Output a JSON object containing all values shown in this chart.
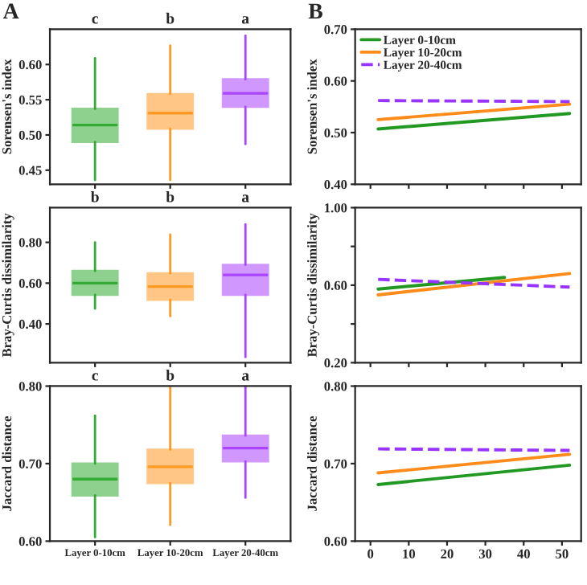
{
  "chart_data": [
    {
      "type": "box",
      "title": "A",
      "ylabel": "Sorensen's index",
      "categories": [
        null,
        null,
        null
      ],
      "colors": [
        "#33aa33",
        "#ff9922",
        "#aa44ff"
      ],
      "boxes": [
        {
          "low": 0.436,
          "q1": 0.49,
          "median": 0.514,
          "q3": 0.537,
          "high": 0.609
        },
        {
          "low": 0.436,
          "q1": 0.509,
          "median": 0.531,
          "q3": 0.558,
          "high": 0.627
        },
        {
          "low": 0.487,
          "q1": 0.54,
          "median": 0.559,
          "q3": 0.579,
          "high": 0.641
        }
      ],
      "ylim": [
        0.43,
        0.65
      ],
      "yticks": [
        {
          "value": 0.45,
          "label": "0.45"
        },
        {
          "value": 0.5,
          "label": "0.50"
        },
        {
          "value": 0.55,
          "label": "0.55"
        },
        {
          "value": 0.6,
          "label": "0.60"
        }
      ],
      "annotations": [
        "c",
        "b",
        "a"
      ],
      "tick_labels": "y"
    },
    {
      "type": "line",
      "title": "B",
      "ylabel": "Sorensen's index",
      "legend": "top left",
      "series": [
        {
          "name": "Layer 0-10cm",
          "color": "#229922",
          "x": [
            2,
            52
          ],
          "values": [
            0.507,
            0.537
          ],
          "line_style": "solid"
        },
        {
          "name": "Layer 10-20cm",
          "color": "#ff8c1a",
          "x": [
            2,
            52
          ],
          "values": [
            0.525,
            0.555
          ],
          "line_style": "solid"
        },
        {
          "name": "Layer 20-40cm",
          "color": "#9933ff",
          "x": [
            2,
            52
          ],
          "values": [
            0.562,
            0.56
          ],
          "line_style": "dashed"
        }
      ],
      "xlim": [
        -4,
        55
      ],
      "xticks": [
        0,
        10,
        20,
        30,
        40,
        50
      ],
      "ylim": [
        0.4,
        0.7
      ],
      "yticks": [
        {
          "value": 0.4,
          "label": "0.40"
        },
        {
          "value": 0.5,
          "label": "0.50"
        },
        {
          "value": 0.6,
          "label": "0.60"
        },
        {
          "value": 0.7,
          "label": "0.70"
        }
      ],
      "tick_labels": "y"
    },
    {
      "type": "box",
      "ylabel": "Bray-Curtis dissimilarity",
      "categories": [
        null,
        null,
        null
      ],
      "colors": [
        "#33aa33",
        "#ff9922",
        "#aa44ff"
      ],
      "boxes": [
        {
          "low": 0.475,
          "q1": 0.543,
          "median": 0.6,
          "q3": 0.66,
          "high": 0.8
        },
        {
          "low": 0.438,
          "q1": 0.518,
          "median": 0.583,
          "q3": 0.648,
          "high": 0.838
        },
        {
          "low": 0.238,
          "q1": 0.543,
          "median": 0.64,
          "q3": 0.69,
          "high": 0.888
        }
      ],
      "ylim": [
        0.21,
        0.97
      ],
      "yticks": [
        {
          "value": 0.4,
          "label": "0.40"
        },
        {
          "value": 0.6,
          "label": "0.60"
        },
        {
          "value": 0.8,
          "label": "0.80"
        }
      ],
      "annotations": [
        "b",
        "b",
        "a"
      ],
      "tick_labels": "y"
    },
    {
      "type": "line",
      "ylabel": "Bray-Curtis dissimilarity",
      "series": [
        {
          "color": "#229922",
          "x": [
            2,
            35
          ],
          "values": [
            0.58,
            0.64
          ],
          "line_style": "solid"
        },
        {
          "color": "#ff8c1a",
          "x": [
            2,
            52
          ],
          "values": [
            0.55,
            0.66
          ],
          "line_style": "solid"
        },
        {
          "color": "#9933ff",
          "x": [
            2,
            52
          ],
          "values": [
            0.63,
            0.59
          ],
          "line_style": "dashed"
        }
      ],
      "xlim": [
        -4,
        55
      ],
      "xticks": [
        0,
        10,
        20,
        30,
        40,
        50
      ],
      "ylim": [
        0.2,
        1.0
      ],
      "yticks": [
        {
          "value": 0.2,
          "label": "0.20"
        },
        {
          "value": 0.4,
          "label": null
        },
        {
          "value": 0.6,
          "label": "0.60"
        },
        {
          "value": 0.8,
          "label": null
        },
        {
          "value": 1.0,
          "label": "1.00"
        }
      ],
      "tick_labels": "y"
    },
    {
      "type": "box",
      "ylabel": "Jaccard distance",
      "categories": [
        "Layer 0-10cm",
        "Layer 10-20cm",
        "Layer 20-40cm"
      ],
      "colors": [
        "#33aa33",
        "#ff9922",
        "#aa44ff"
      ],
      "boxes": [
        {
          "low": 0.605,
          "q1": 0.659,
          "median": 0.68,
          "q3": 0.7,
          "high": 0.762
        },
        {
          "low": 0.621,
          "q1": 0.675,
          "median": 0.696,
          "q3": 0.718,
          "high": 0.8
        },
        {
          "low": 0.656,
          "q1": 0.703,
          "median": 0.72,
          "q3": 0.736,
          "high": 0.8
        }
      ],
      "ylim": [
        0.6,
        0.8
      ],
      "yticks": [
        {
          "value": 0.6,
          "label": "0.60"
        },
        {
          "value": 0.7,
          "label": "0.70"
        },
        {
          "value": 0.8,
          "label": "0.80"
        }
      ],
      "annotations": [
        "c",
        "b",
        "a"
      ]
    },
    {
      "type": "line",
      "ylabel": "Jaccard distance",
      "series": [
        {
          "color": "#229922",
          "x": [
            2,
            52
          ],
          "values": [
            0.673,
            0.698
          ],
          "line_style": "solid"
        },
        {
          "color": "#ff8c1a",
          "x": [
            2,
            52
          ],
          "values": [
            0.688,
            0.712
          ],
          "line_style": "solid"
        },
        {
          "color": "#9933ff",
          "x": [
            2,
            52
          ],
          "values": [
            0.719,
            0.717
          ],
          "line_style": "dashed"
        }
      ],
      "xlim": [
        -4,
        55
      ],
      "xticks": [
        0,
        10,
        20,
        30,
        40,
        50
      ],
      "ylim": [
        0.6,
        0.8
      ],
      "yticks": [
        {
          "value": 0.6,
          "label": "0.60"
        },
        {
          "value": 0.7,
          "label": "0.70"
        },
        {
          "value": 0.8,
          "label": "0.80"
        }
      ]
    }
  ]
}
